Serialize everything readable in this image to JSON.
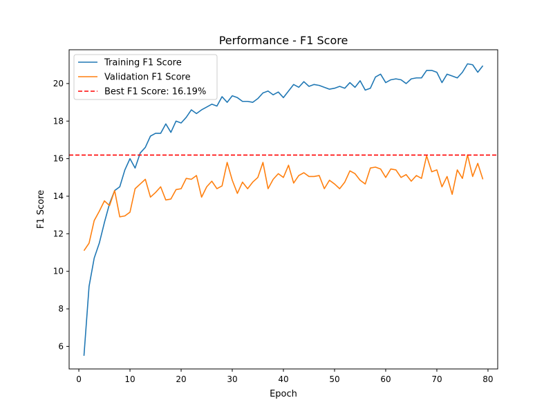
{
  "chart_data": {
    "type": "line",
    "title": "Performance - F1 Score",
    "xlabel": "Epoch",
    "ylabel": "F1 Score",
    "xlim": [
      -1.9,
      81.9
    ],
    "ylim": [
      4.8,
      21.8
    ],
    "xticks": [
      0,
      10,
      20,
      30,
      40,
      50,
      60,
      70,
      80
    ],
    "yticks": [
      6,
      8,
      10,
      12,
      14,
      16,
      18,
      20
    ],
    "grid": false,
    "legend_position": "upper-left",
    "series": [
      {
        "name": "Training F1 Score",
        "color": "#1f77b4",
        "x": [
          1,
          2,
          3,
          4,
          5,
          6,
          7,
          8,
          9,
          10,
          11,
          12,
          13,
          14,
          15,
          16,
          17,
          18,
          19,
          20,
          21,
          22,
          23,
          24,
          25,
          26,
          27,
          28,
          29,
          30,
          31,
          32,
          33,
          34,
          35,
          36,
          37,
          38,
          39,
          40,
          41,
          42,
          43,
          44,
          45,
          46,
          47,
          48,
          49,
          50,
          51,
          52,
          53,
          54,
          55,
          56,
          57,
          58,
          59,
          60,
          61,
          62,
          63,
          64,
          65,
          66,
          67,
          68,
          69,
          70,
          71,
          72,
          73,
          74,
          75,
          76,
          77,
          78,
          79
        ],
        "y": [
          5.5,
          9.2,
          10.7,
          11.5,
          12.6,
          13.6,
          14.3,
          14.5,
          15.4,
          16.0,
          15.5,
          16.3,
          16.6,
          17.2,
          17.35,
          17.35,
          17.85,
          17.4,
          18.0,
          17.9,
          18.2,
          18.6,
          18.4,
          18.6,
          18.75,
          18.9,
          18.8,
          19.3,
          19.0,
          19.35,
          19.25,
          19.05,
          19.05,
          19.0,
          19.2,
          19.5,
          19.6,
          19.4,
          19.55,
          19.25,
          19.6,
          19.95,
          19.8,
          20.1,
          19.85,
          19.95,
          19.9,
          19.8,
          19.7,
          19.75,
          19.85,
          19.75,
          20.05,
          19.8,
          20.15,
          19.65,
          19.75,
          20.35,
          20.5,
          20.05,
          20.2,
          20.25,
          20.2,
          20.0,
          20.25,
          20.3,
          20.3,
          20.7,
          20.7,
          20.6,
          20.05,
          20.5,
          20.4,
          20.3,
          20.6,
          21.05,
          21.0,
          20.6,
          20.95
        ]
      },
      {
        "name": "Validation F1 Score",
        "color": "#ff7f0e",
        "x": [
          1,
          2,
          3,
          4,
          5,
          6,
          7,
          8,
          9,
          10,
          11,
          12,
          13,
          14,
          15,
          16,
          17,
          18,
          19,
          20,
          21,
          22,
          23,
          24,
          25,
          26,
          27,
          28,
          29,
          30,
          31,
          32,
          33,
          34,
          35,
          36,
          37,
          38,
          39,
          40,
          41,
          42,
          43,
          44,
          45,
          46,
          47,
          48,
          49,
          50,
          51,
          52,
          53,
          54,
          55,
          56,
          57,
          58,
          59,
          60,
          61,
          62,
          63,
          64,
          65,
          66,
          67,
          68,
          69,
          70,
          71,
          72,
          73,
          74,
          75,
          76,
          77,
          78,
          79
        ],
        "y": [
          11.1,
          11.5,
          12.7,
          13.2,
          13.75,
          13.5,
          14.3,
          12.9,
          12.95,
          13.15,
          14.4,
          14.65,
          14.9,
          13.95,
          14.2,
          14.5,
          13.8,
          13.85,
          14.35,
          14.4,
          14.95,
          14.9,
          15.1,
          13.95,
          14.5,
          14.8,
          14.4,
          14.55,
          15.8,
          14.85,
          14.15,
          14.75,
          14.4,
          14.75,
          15.0,
          15.8,
          14.4,
          14.9,
          15.2,
          15.0,
          15.65,
          14.7,
          15.1,
          15.25,
          15.05,
          15.05,
          15.1,
          14.4,
          14.85,
          14.65,
          14.4,
          14.75,
          15.35,
          15.2,
          14.85,
          14.65,
          15.5,
          15.55,
          15.45,
          15.0,
          15.45,
          15.4,
          15.0,
          15.15,
          14.8,
          15.1,
          14.95,
          16.15,
          15.3,
          15.4,
          14.5,
          15.05,
          14.1,
          15.4,
          14.95,
          16.2,
          15.05,
          15.75,
          14.9
        ]
      }
    ],
    "reference_line": {
      "name": "Best F1 Score: 16.19%",
      "value": 16.19,
      "color": "#ff0000",
      "style": "dashed"
    }
  }
}
